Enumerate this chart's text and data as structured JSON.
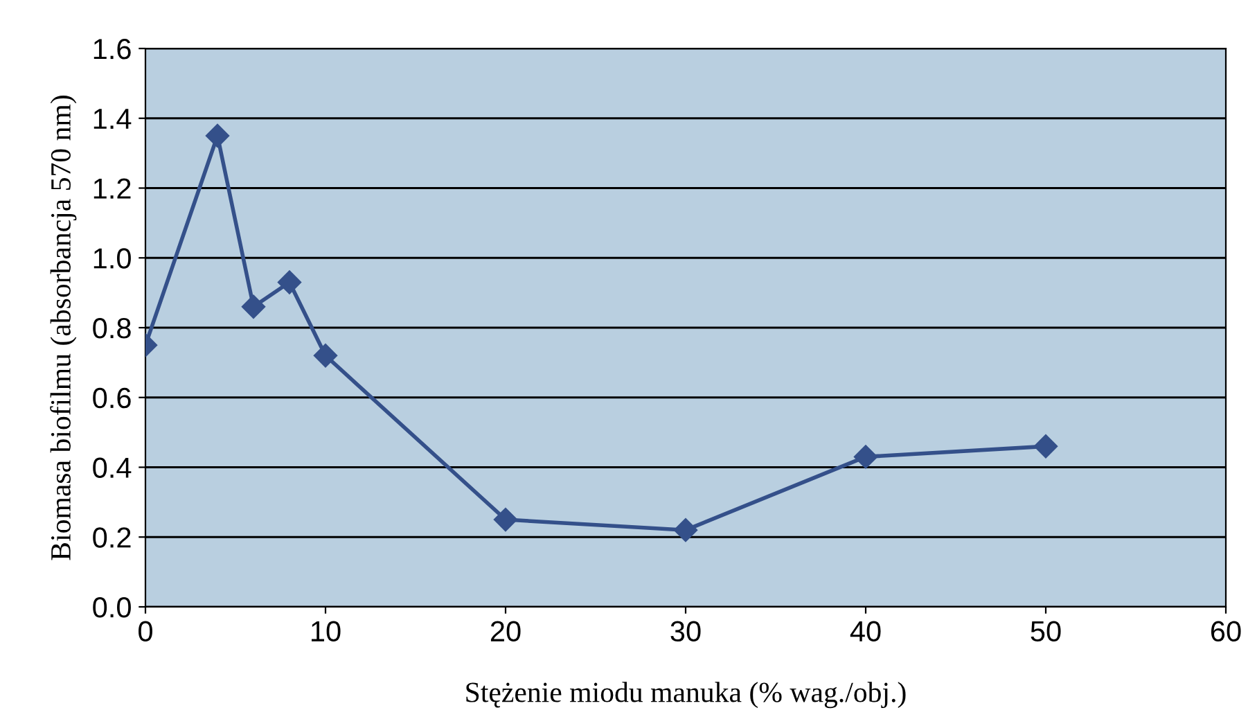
{
  "chart_data": {
    "type": "line",
    "xlabel": "Stężenie miodu manuka (% wag./obj.)",
    "ylabel": "Biomasa biofilmu (absorbancja 570 nm)",
    "x": [
      0,
      4,
      6,
      8,
      10,
      20,
      30,
      40,
      50
    ],
    "series": [
      {
        "color": "#34508a",
        "values": [
          0.75,
          1.35,
          0.86,
          0.93,
          0.72,
          0.25,
          0.22,
          0.43,
          0.46
        ]
      }
    ],
    "xlim": [
      0,
      60
    ],
    "xticks": [
      0,
      10,
      20,
      30,
      40,
      50,
      60
    ],
    "ylim": [
      0,
      1.6
    ],
    "yticks": [
      {
        "value": 0,
        "label": "0.0"
      },
      0.2,
      0.4,
      0.6,
      0.8,
      {
        "value": 1,
        "label": "1.0"
      },
      1.2,
      1.4,
      1.6
    ],
    "grid": "y",
    "marker": "diamond",
    "line_style": "solid"
  }
}
